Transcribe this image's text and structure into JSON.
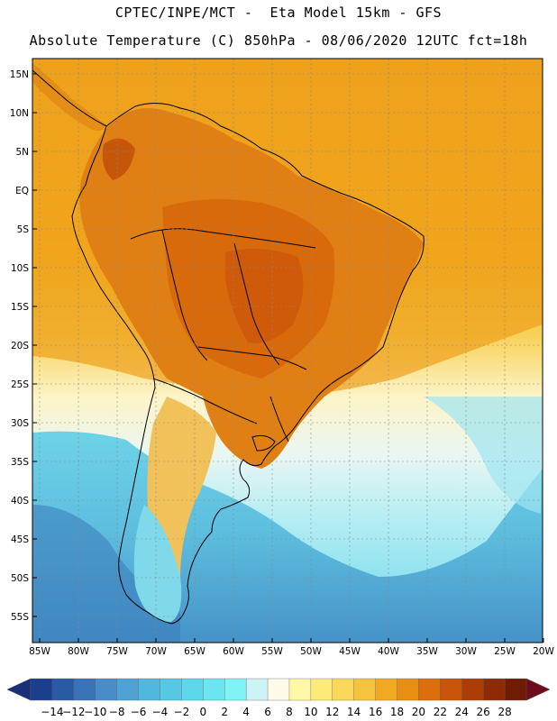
{
  "header": {
    "line1": "CPTEC/INPE/MCT -  Eta Model 15km - GFS",
    "line2": "Absolute Temperature (C) 850hPa - 08/06/2020 12UTC fct=18h"
  },
  "map": {
    "lat_labels": [
      "15N",
      "10N",
      "5N",
      "EQ",
      "5S",
      "10S",
      "15S",
      "20S",
      "25S",
      "30S",
      "35S",
      "40S",
      "45S",
      "50S",
      "55S"
    ],
    "lon_labels": [
      "85W",
      "80W",
      "75W",
      "70W",
      "65W",
      "60W",
      "55W",
      "50W",
      "45W",
      "40W",
      "35W",
      "30W",
      "25W",
      "20W"
    ],
    "lat_values": [
      15,
      10,
      5,
      0,
      -5,
      -10,
      -15,
      -20,
      -25,
      -30,
      -35,
      -40,
      -45,
      -50,
      -55
    ],
    "lon_values": [
      -85,
      -80,
      -75,
      -70,
      -65,
      -60,
      -55,
      -50,
      -45,
      -40,
      -35,
      -30,
      -25,
      -20
    ]
  },
  "colorbar": {
    "labels": [
      "-14",
      "-12",
      "-10",
      "-8",
      "-6",
      "-4",
      "-2",
      "0",
      "2",
      "4",
      "6",
      "8",
      "10",
      "12",
      "14",
      "16",
      "18",
      "20",
      "22",
      "24",
      "26",
      "28"
    ],
    "colors": [
      "#1a3f8c",
      "#2a5aa3",
      "#3a73b6",
      "#4a8cc6",
      "#4fa3d4",
      "#52b7dc",
      "#56c8e4",
      "#5cd8ea",
      "#6ae6f0",
      "#7ff3f6",
      "#cdf3f7",
      "#fffbe6",
      "#fff7a8",
      "#fdea7a",
      "#fbd85a",
      "#f6c33f",
      "#f0aa22",
      "#e88e13",
      "#dc6e0b",
      "#c75408",
      "#ad3d06",
      "#8e2a05",
      "#6e1c05"
    ]
  }
}
